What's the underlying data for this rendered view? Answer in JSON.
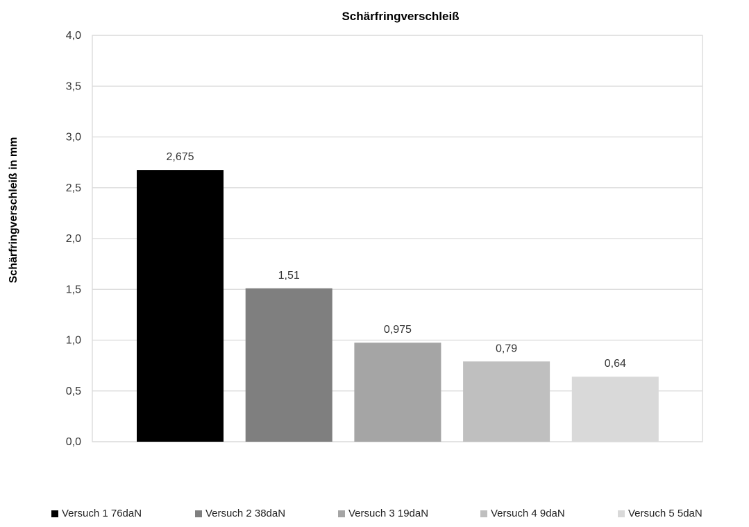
{
  "chart_data": {
    "type": "bar",
    "title": "Schärfringverschleiß",
    "ylabel": "Schärfringverschleiß  in mm",
    "xlabel": "",
    "ylim": [
      0,
      4.0
    ],
    "yticks": [
      0,
      0.5,
      1.0,
      1.5,
      2.0,
      2.5,
      3.0,
      3.5,
      4.0
    ],
    "ytick_labels": [
      "0,0",
      "0,5",
      "1,0",
      "1,5",
      "2,0",
      "2,5",
      "3,0",
      "3,5",
      "4,0"
    ],
    "grid": true,
    "legend_position": "bottom",
    "series": [
      {
        "name": "Versuch 1 76daN",
        "value": 2.675,
        "label": "2,675",
        "color": "#000000"
      },
      {
        "name": "Versuch 2 38daN",
        "value": 1.51,
        "label": "1,51",
        "color": "#7f7f7f"
      },
      {
        "name": "Versuch 3 19daN",
        "value": 0.975,
        "label": "0,975",
        "color": "#a5a5a5"
      },
      {
        "name": "Versuch 4 9daN",
        "value": 0.79,
        "label": "0,79",
        "color": "#bfbfbf"
      },
      {
        "name": "Versuch 5 5daN",
        "value": 0.64,
        "label": "0,64",
        "color": "#d9d9d9"
      }
    ]
  }
}
